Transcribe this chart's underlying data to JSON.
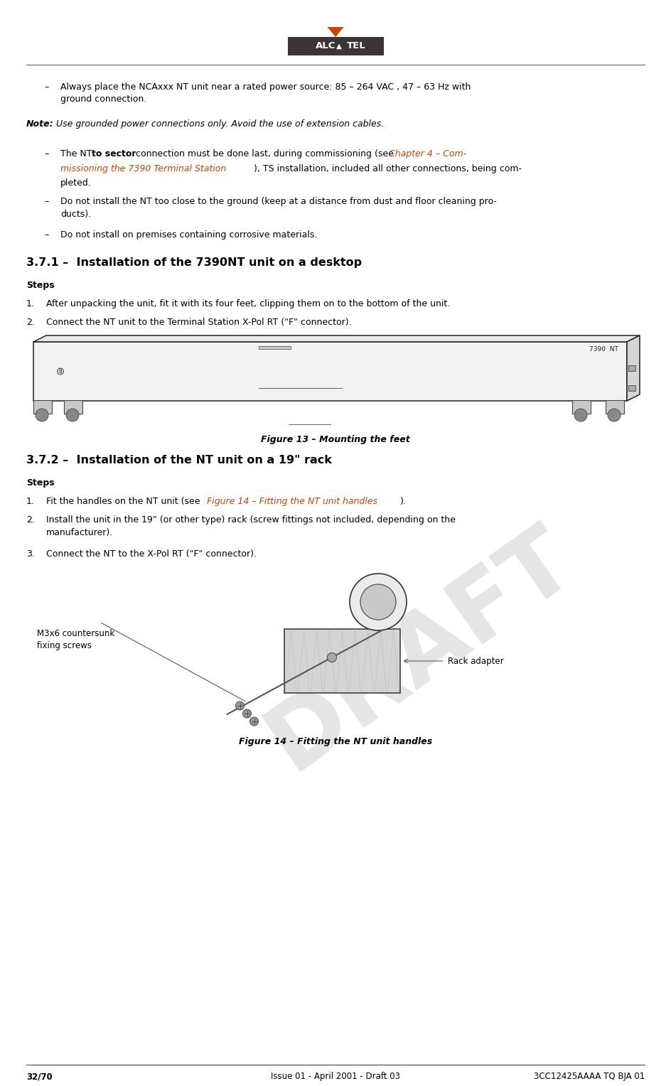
{
  "page_width": 9.44,
  "page_height": 15.28,
  "dpi": 100,
  "bg_color": "#ffffff",
  "text_color": "#000000",
  "orange_color": "#cc4400",
  "gray_color": "#808080",
  "alcatel_bg": "#3d3535",
  "footer_left": "32/70",
  "footer_center": "Issue 01 - April 2001 - Draft 03",
  "footer_right": "3CC12425AAAA TQ BJA 01",
  "section371": "3.7.1 –  Installation of the 7390NT unit on a desktop",
  "steps_label": "Steps",
  "step1_371": "After unpacking the unit, fit it with its four feet, clipping them on to the bottom of the unit.",
  "step2_371": "Connect the NT unit to the Terminal Station X-Pol RT (\"F\" connector).",
  "fig13_caption": "Figure 13 – Mounting the feet",
  "section372": "3.7.2 –  Installation of the NT unit on a 19\" rack",
  "step2_372": "Install the unit in the 19\" (or other type) rack (screw fittings not included, depending on the\nmanufacturer).",
  "step3_372": "Connect the NT to the X-Pol RT (\"F\" connector).",
  "fig14_caption": "Figure 14 – Fitting the NT unit handles",
  "label_m3x6": "M3x6 countersunk\nfixing screws",
  "label_rack": "Rack adapter"
}
